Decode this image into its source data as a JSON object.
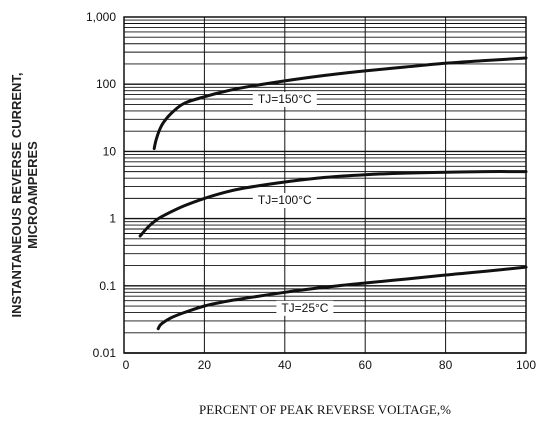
{
  "chart_data": {
    "type": "line",
    "y_scale": "log",
    "xlabel": "PERCENT OF PEAK REVERSE VOLTAGE,%",
    "ylabel_line1": "INSTANTANEOUS REVERSE CURRENT,",
    "ylabel_line2": "MICROAMPERES",
    "xlim": [
      0,
      100
    ],
    "ylim": [
      0.01,
      1000
    ],
    "x_ticks": [
      "0",
      "20",
      "40",
      "60",
      "80",
      "100"
    ],
    "x_tick_values": [
      0,
      20,
      40,
      60,
      80,
      100
    ],
    "y_ticks": [
      "0.01",
      "0.1",
      "1",
      "10",
      "100",
      "1,000"
    ],
    "y_tick_values": [
      0.01,
      0.1,
      1,
      10,
      100,
      1000
    ],
    "grid": true,
    "series": [
      {
        "name": "TJ=150°C",
        "label_x": 40,
        "x": [
          7.5,
          8,
          9,
          10,
          12,
          15,
          20,
          25,
          30,
          40,
          50,
          60,
          70,
          80,
          90,
          100
        ],
        "y": [
          11,
          15,
          22,
          28,
          38,
          52,
          65,
          78,
          90,
          112,
          135,
          158,
          180,
          205,
          225,
          245
        ]
      },
      {
        "name": "TJ=100°C",
        "label_x": 40,
        "x": [
          4,
          6,
          8,
          10,
          15,
          20,
          25,
          30,
          40,
          50,
          60,
          70,
          80,
          90,
          100
        ],
        "y": [
          0.55,
          0.75,
          0.95,
          1.12,
          1.55,
          2.0,
          2.45,
          2.85,
          3.5,
          4.1,
          4.5,
          4.75,
          4.9,
          5.0,
          5.0
        ]
      },
      {
        "name": "TJ=25°C",
        "label_x": 45,
        "x": [
          8.5,
          9,
          10,
          12,
          15,
          20,
          25,
          30,
          40,
          50,
          60,
          70,
          80,
          90,
          100
        ],
        "y": [
          0.023,
          0.026,
          0.029,
          0.034,
          0.04,
          0.05,
          0.058,
          0.065,
          0.08,
          0.095,
          0.11,
          0.126,
          0.145,
          0.165,
          0.19
        ]
      }
    ]
  }
}
